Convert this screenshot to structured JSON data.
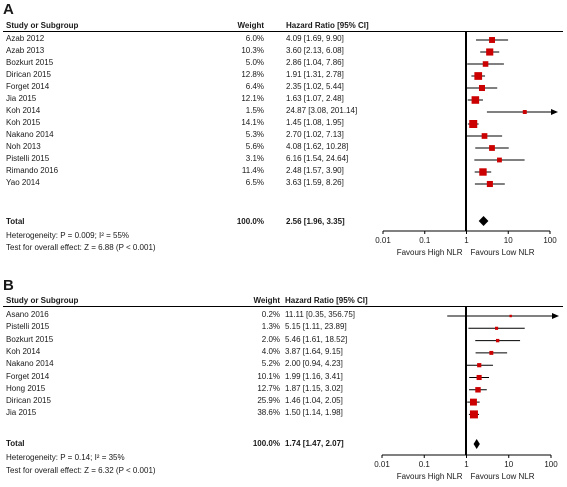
{
  "chart_data": [
    {
      "type": "forest",
      "panel_label": "A",
      "headers": {
        "study": "Study or Subgroup",
        "weight": "Weight",
        "effect": "Hazard Ratio [95% CI]"
      },
      "studies": [
        {
          "name": "Azab 2012",
          "weight": "6.0%",
          "ci_text": "4.09 [1.69, 9.90]",
          "hr": 4.09,
          "lo": 1.69,
          "hi": 9.9
        },
        {
          "name": "Azab 2013",
          "weight": "10.3%",
          "ci_text": "3.60 [2.13, 6.08]",
          "hr": 3.6,
          "lo": 2.13,
          "hi": 6.08
        },
        {
          "name": "Bozkurt 2015",
          "weight": "5.0%",
          "ci_text": "2.86 [1.04, 7.86]",
          "hr": 2.86,
          "lo": 1.04,
          "hi": 7.86
        },
        {
          "name": "Dirican 2015",
          "weight": "12.8%",
          "ci_text": "1.91 [1.31, 2.78]",
          "hr": 1.91,
          "lo": 1.31,
          "hi": 2.78
        },
        {
          "name": "Forget 2014",
          "weight": "6.4%",
          "ci_text": "2.35 [1.02, 5.44]",
          "hr": 2.35,
          "lo": 1.02,
          "hi": 5.44
        },
        {
          "name": "Jia 2015",
          "weight": "12.1%",
          "ci_text": "1.63 [1.07, 2.48]",
          "hr": 1.63,
          "lo": 1.07,
          "hi": 2.48
        },
        {
          "name": "Koh 2014",
          "weight": "1.5%",
          "ci_text": "24.87 [3.08, 201.14]",
          "hr": 24.87,
          "lo": 3.08,
          "hi": 201.14
        },
        {
          "name": "Koh 2015",
          "weight": "14.1%",
          "ci_text": "1.45 [1.08, 1.95]",
          "hr": 1.45,
          "lo": 1.08,
          "hi": 1.95
        },
        {
          "name": "Nakano 2014",
          "weight": "5.3%",
          "ci_text": "2.70 [1.02, 7.13]",
          "hr": 2.7,
          "lo": 1.02,
          "hi": 7.13
        },
        {
          "name": "Noh 2013",
          "weight": "5.6%",
          "ci_text": "4.08 [1.62, 10.28]",
          "hr": 4.08,
          "lo": 1.62,
          "hi": 10.28
        },
        {
          "name": "Pistelli 2015",
          "weight": "3.1%",
          "ci_text": "6.16 [1.54, 24.64]",
          "hr": 6.16,
          "lo": 1.54,
          "hi": 24.64
        },
        {
          "name": "Rimando 2016",
          "weight": "11.4%",
          "ci_text": "2.48 [1.57, 3.90]",
          "hr": 2.48,
          "lo": 1.57,
          "hi": 3.9
        },
        {
          "name": "Yao 2014",
          "weight": "6.5%",
          "ci_text": "3.63 [1.59, 8.26]",
          "hr": 3.63,
          "lo": 1.59,
          "hi": 8.26
        }
      ],
      "total": {
        "name": "Total",
        "weight": "100.0%",
        "ci_text": "2.56 [1.96, 3.35]",
        "hr": 2.56,
        "lo": 1.96,
        "hi": 3.35
      },
      "heterogeneity": "Heterogeneity: P = 0.009; I² = 55%",
      "overall_test": "Test for overall effect: Z = 6.88 (P < 0.001)",
      "x_scale": "log",
      "x_ticks": [
        0.01,
        0.1,
        1,
        10,
        100
      ],
      "x_tick_labels": [
        "0.01",
        "0.1",
        "1",
        "10",
        "100"
      ],
      "xlim": [
        0.01,
        100
      ],
      "favours_left": "Favours High NLR",
      "favours_right": "Favours Low NLR"
    },
    {
      "type": "forest",
      "panel_label": "B",
      "headers": {
        "study": "Study or Subgroup",
        "weight": "Weight",
        "effect": "Hazard Ratio [95% CI]"
      },
      "studies": [
        {
          "name": "Asano 2016",
          "weight": "0.2%",
          "ci_text": "11.11 [0.35, 356.75]",
          "hr": 11.11,
          "lo": 0.35,
          "hi": 356.75
        },
        {
          "name": "Pistelli 2015",
          "weight": "1.3%",
          "ci_text": "5.15 [1.11, 23.89]",
          "hr": 5.15,
          "lo": 1.11,
          "hi": 23.89
        },
        {
          "name": "Bozkurt 2015",
          "weight": "2.0%",
          "ci_text": "5.46 [1.61, 18.52]",
          "hr": 5.46,
          "lo": 1.61,
          "hi": 18.52
        },
        {
          "name": "Koh 2014",
          "weight": "4.0%",
          "ci_text": "3.87 [1.64, 9.15]",
          "hr": 3.87,
          "lo": 1.64,
          "hi": 9.15
        },
        {
          "name": "Nakano 2014",
          "weight": "5.2%",
          "ci_text": "2.00 [0.94, 4.23]",
          "hr": 2.0,
          "lo": 0.94,
          "hi": 4.23
        },
        {
          "name": "Forget 2014",
          "weight": "10.1%",
          "ci_text": "1.99 [1.16, 3.41]",
          "hr": 1.99,
          "lo": 1.16,
          "hi": 3.41
        },
        {
          "name": "Hong 2015",
          "weight": "12.7%",
          "ci_text": "1.87 [1.15, 3.02]",
          "hr": 1.87,
          "lo": 1.15,
          "hi": 3.02
        },
        {
          "name": "Dirican 2015",
          "weight": "25.9%",
          "ci_text": "1.46 [1.04, 2.05]",
          "hr": 1.46,
          "lo": 1.04,
          "hi": 2.05
        },
        {
          "name": "Jia 2015",
          "weight": "38.6%",
          "ci_text": "1.50 [1.14, 1.98]",
          "hr": 1.5,
          "lo": 1.14,
          "hi": 1.98
        }
      ],
      "total": {
        "name": "Total",
        "weight": "100.0%",
        "ci_text": "1.74 [1.47, 2.07]",
        "hr": 1.74,
        "lo": 1.47,
        "hi": 2.07
      },
      "heterogeneity": "Heterogeneity: P = 0.14; I² = 35%",
      "overall_test": "Test for overall effect: Z = 6.32 (P < 0.001)",
      "x_scale": "log",
      "x_ticks": [
        0.01,
        0.1,
        1,
        10,
        100
      ],
      "x_tick_labels": [
        "0.01",
        "0.1",
        "1",
        "10",
        "100"
      ],
      "xlim": [
        0.01,
        100
      ],
      "favours_left": "Favours High NLR",
      "favours_right": "Favours Low NLR"
    }
  ],
  "colors": {
    "point": "#cc0000",
    "line": "#000000",
    "diamond": "#000000"
  }
}
